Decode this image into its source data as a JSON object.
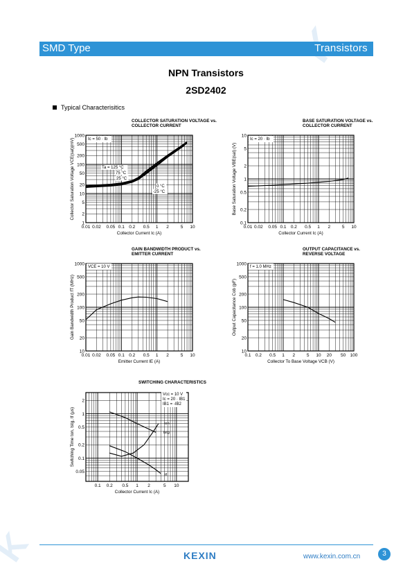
{
  "header": {
    "left": "SMD Type",
    "right": "Transistors"
  },
  "title": {
    "line1": "NPN  Transistors",
    "line2": "2SD2402"
  },
  "section_label": "Typical  Characterisitics",
  "footer": {
    "logo": "KEXIN",
    "url": "www.kexin.com.cn",
    "page": "3"
  },
  "colors": {
    "brand": "#2e93d6"
  },
  "chart_data": [
    {
      "type": "line",
      "title": "COLLECTOR SATURATION VOLTAGE vs. COLLECTOR CURRENT",
      "xlabel": "Collector Current  Ic (A)",
      "ylabel": "Collector Saturation Voltage  VCE(sat)(mV)",
      "xscale": "log",
      "yscale": "log",
      "xlim": [
        0.01,
        10
      ],
      "ylim": [
        1,
        1000
      ],
      "xticks": [
        "0.01",
        "0.02",
        "0.05",
        "0.1",
        "0.2",
        "0.5",
        "1",
        "2",
        "5",
        "10"
      ],
      "yticks": [
        "1000",
        "500",
        "200",
        "100",
        "50",
        "20",
        "10",
        "5",
        "2",
        "1"
      ],
      "xtick_values": [
        0.01,
        0.02,
        0.05,
        0.1,
        0.2,
        0.5,
        1,
        2,
        5,
        10
      ],
      "ytick_values": [
        1000,
        500,
        200,
        100,
        50,
        20,
        10,
        5,
        2,
        1
      ],
      "condition": "Ic = 50 · Ib",
      "annotations": [
        "Ta = 125 °C",
        "75 °C",
        "25 °C",
        "0 °C",
        "-25 °C"
      ],
      "series": [
        {
          "values": [
            [
              0.01,
              19
            ],
            [
              0.05,
              21
            ],
            [
              0.1,
              23
            ],
            [
              0.2,
              28
            ],
            [
              0.3,
              36
            ],
            [
              0.5,
              60
            ],
            [
              1,
              115
            ],
            [
              2,
              210
            ],
            [
              5,
              450
            ],
            [
              7,
              600
            ]
          ]
        },
        {
          "values": [
            [
              0.01,
              18
            ],
            [
              0.05,
              20
            ],
            [
              0.1,
              22
            ],
            [
              0.2,
              27
            ],
            [
              0.3,
              34
            ],
            [
              0.5,
              56
            ],
            [
              1,
              108
            ],
            [
              2,
              200
            ],
            [
              5,
              430
            ],
            [
              7,
              580
            ]
          ]
        },
        {
          "values": [
            [
              0.01,
              17
            ],
            [
              0.05,
              19
            ],
            [
              0.1,
              21
            ],
            [
              0.2,
              26
            ],
            [
              0.3,
              32
            ],
            [
              0.5,
              52
            ],
            [
              1,
              100
            ],
            [
              2,
              190
            ],
            [
              5,
              410
            ],
            [
              7,
              560
            ]
          ]
        },
        {
          "values": [
            [
              0.01,
              16.5
            ],
            [
              0.05,
              18.5
            ],
            [
              0.1,
              20
            ],
            [
              0.2,
              25
            ],
            [
              0.3,
              31
            ],
            [
              0.5,
              49
            ],
            [
              1,
              95
            ],
            [
              2,
              182
            ],
            [
              5,
              395
            ],
            [
              7,
              545
            ]
          ]
        },
        {
          "values": [
            [
              0.01,
              16
            ],
            [
              0.05,
              18
            ],
            [
              0.1,
              19.5
            ],
            [
              0.2,
              24
            ],
            [
              0.3,
              30
            ],
            [
              0.5,
              47
            ],
            [
              1,
              90
            ],
            [
              2,
              175
            ],
            [
              5,
              380
            ],
            [
              7,
              530
            ]
          ]
        }
      ]
    },
    {
      "type": "line",
      "title": "BASE SATURATION VOLTAGE vs. COLLECTOR CURRENT",
      "xlabel": "Collector Current  Ic (A)",
      "ylabel": "Base Saturation Voltage  VBE(sat) (V)",
      "xscale": "log",
      "yscale": "log",
      "xlim": [
        0.01,
        10
      ],
      "ylim": [
        0.1,
        10
      ],
      "xticks": [
        "0.01",
        "0.02",
        "0.05",
        "0.1",
        "0.2",
        "0.5",
        "1",
        "2",
        "5",
        "10"
      ],
      "yticks": [
        "10",
        "5",
        "2",
        "1",
        "0.5",
        "0.2",
        "0.1"
      ],
      "xtick_values": [
        0.01,
        0.02,
        0.05,
        0.1,
        0.2,
        0.5,
        1,
        2,
        5,
        10
      ],
      "ytick_values": [
        10,
        5,
        2,
        1,
        0.5,
        0.2,
        0.1
      ],
      "condition": "Ic = 20 · Ib",
      "series": [
        {
          "values": [
            [
              0.01,
              0.68
            ],
            [
              0.05,
              0.72
            ],
            [
              0.1,
              0.74
            ],
            [
              0.5,
              0.8
            ],
            [
              1,
              0.84
            ],
            [
              2,
              0.88
            ],
            [
              5,
              0.97
            ],
            [
              7,
              1.05
            ]
          ]
        }
      ]
    },
    {
      "type": "line",
      "title": "GAIN BANDWIDTH PRODUCT vs. EMITTER CURRENT",
      "xlabel": "Emitter Current  IE (A)",
      "ylabel": "Gain Bandwidth Product  fT (MHz)",
      "xscale": "log",
      "yscale": "log",
      "xlim": [
        0.01,
        10
      ],
      "ylim": [
        10,
        1000
      ],
      "xticks": [
        "0.01",
        "0.02",
        "0.05",
        "0.1",
        "0.2",
        "0.5",
        "1",
        "2",
        "5",
        "10"
      ],
      "yticks": [
        "1000",
        "500",
        "200",
        "100",
        "50",
        "20",
        "10"
      ],
      "xtick_values": [
        0.01,
        0.02,
        0.05,
        0.1,
        0.2,
        0.5,
        1,
        2,
        5,
        10
      ],
      "ytick_values": [
        1000,
        500,
        200,
        100,
        50,
        20,
        10
      ],
      "condition": "VCE = 10 V",
      "series": [
        {
          "values": [
            [
              0.01,
              52
            ],
            [
              0.02,
              88
            ],
            [
              0.05,
              120
            ],
            [
              0.1,
              145
            ],
            [
              0.2,
              165
            ],
            [
              0.3,
              172
            ],
            [
              0.5,
              170
            ],
            [
              1,
              158
            ],
            [
              2,
              135
            ]
          ]
        }
      ]
    },
    {
      "type": "line",
      "title": "OUTPUT CAPACITANCE vs. REVERSE VOLTAGE",
      "xlabel": "Collector To Base Voltage  VCB (V)",
      "ylabel": "Output Capacitance  Cob (pF)",
      "xscale": "log",
      "yscale": "log",
      "xlim": [
        0.1,
        100
      ],
      "ylim": [
        10,
        1000
      ],
      "xticks": [
        "0.1",
        "0.2",
        "0.5",
        "1",
        "2",
        "5",
        "10",
        "20",
        "50",
        "100"
      ],
      "yticks": [
        "1000",
        "500",
        "200",
        "100",
        "50",
        "20",
        "10"
      ],
      "xtick_values": [
        0.1,
        0.2,
        0.5,
        1,
        2,
        5,
        10,
        20,
        50,
        100
      ],
      "ytick_values": [
        1000,
        500,
        200,
        100,
        50,
        20,
        10
      ],
      "condition": "f = 1.0 MHz",
      "series": [
        {
          "values": [
            [
              1,
              150
            ],
            [
              2,
              128
            ],
            [
              5,
              100
            ],
            [
              10,
              72
            ],
            [
              20,
              55
            ],
            [
              30,
              45
            ]
          ]
        }
      ]
    },
    {
      "type": "line",
      "title": "SWITCHING CHARACTERISTICS",
      "xlabel": "Collector Current  Ic (A)",
      "ylabel": "Switching Time  ton, tstg, tf (μs)",
      "xscale": "log",
      "yscale": "log",
      "xlim": [
        0.05,
        20
      ],
      "ylim": [
        0.03,
        3
      ],
      "xticks": [
        "0.1",
        "0.2",
        "0.5",
        "1",
        "2",
        "5",
        "10"
      ],
      "yticks": [
        "2",
        "1",
        "0.5",
        "0.2",
        "0.1",
        "0.05"
      ],
      "xtick_values": [
        0.1,
        0.2,
        0.5,
        1,
        2,
        5,
        10
      ],
      "ytick_values": [
        2,
        1,
        0.5,
        0.2,
        0.1,
        0.05
      ],
      "condition": [
        "Vcc = 10 V",
        "Ic = 20 · IB1",
        "IB1 = -IB2"
      ],
      "annotations": [
        "ton",
        "tstg",
        "tf"
      ],
      "series": [
        {
          "values": [
            [
              0.2,
              1.1
            ],
            [
              0.5,
              0.82
            ],
            [
              1,
              0.6
            ],
            [
              2,
              0.45
            ],
            [
              3,
              0.38
            ]
          ]
        },
        {
          "values": [
            [
              0.2,
              0.13
            ],
            [
              0.4,
              0.11
            ],
            [
              0.8,
              0.13
            ],
            [
              1.5,
              0.2
            ],
            [
              2.5,
              0.38
            ],
            [
              3.5,
              0.6
            ]
          ]
        },
        {
          "values": [
            [
              0.2,
              0.19
            ],
            [
              0.5,
              0.14
            ],
            [
              1,
              0.1
            ],
            [
              2,
              0.07
            ],
            [
              3,
              0.055
            ],
            [
              4,
              0.045
            ]
          ]
        }
      ]
    }
  ]
}
